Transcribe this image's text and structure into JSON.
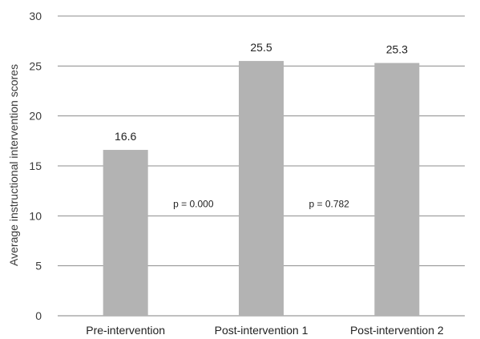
{
  "chart_data": {
    "type": "bar",
    "title": "",
    "xlabel": "",
    "ylabel": "Average instructional intervention scores",
    "ylim": [
      0,
      30
    ],
    "yticks": [
      0,
      5,
      10,
      15,
      20,
      25,
      30
    ],
    "categories": [
      "Pre-intervention",
      "Post-intervention 1",
      "Post-intervention 2"
    ],
    "values": [
      16.6,
      25.5,
      25.3
    ],
    "data_labels": [
      "16.6",
      "25.5",
      "25.3"
    ],
    "annotations": [
      {
        "text": "p = 0.000",
        "between": [
          0,
          1
        ],
        "y": 11.2
      },
      {
        "text": "p = 0.782",
        "between": [
          1,
          2
        ],
        "y": 11.2
      }
    ],
    "bar_color": "#b3b3b3",
    "grid": true,
    "legend": "none"
  }
}
